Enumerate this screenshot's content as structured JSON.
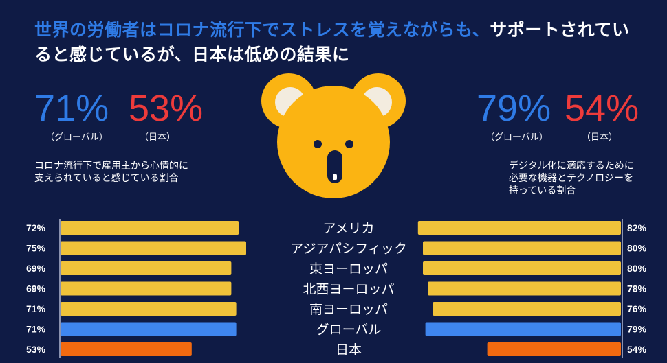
{
  "title": {
    "part1": "世界の労働者はコロナ流行下でストレスを覚えながらも、",
    "part2": "サポートされていると感じているが、日本は低めの結果に"
  },
  "left": {
    "global_pct": "71%",
    "global_label": "（グローバル）",
    "japan_pct": "53%",
    "japan_label": "（日本）",
    "description": "コロナ流行下で雇用主から心情的に支えられていると感じている割合"
  },
  "right": {
    "global_pct": "79%",
    "global_label": "（グローバル）",
    "japan_pct": "54%",
    "japan_label": "（日本）",
    "description": "デジタル化に適応するために必要な機器とテクノロジーを持っている割合"
  },
  "colors": {
    "background": "#0f1b45",
    "bar_region": "#f0c23a",
    "bar_global": "#3f86ef",
    "bar_japan": "#f26a10",
    "koala": "#fbb412",
    "koala_ear_inner": "#f3ecdf",
    "accent_blue": "#2f7be6",
    "accent_red": "#ee3b3b"
  },
  "icons": {
    "mascot": "koala-face-icon"
  },
  "chart_data": {
    "type": "bar",
    "categories": [
      "アメリカ",
      "アジアパシフィック",
      "東ヨーロッパ",
      "北西ヨーロッパ",
      "南ヨーロッパ",
      "グローバル",
      "日本"
    ],
    "series": [
      {
        "values": [
          72,
          75,
          69,
          69,
          71,
          71,
          53
        ],
        "labels": [
          "72%",
          "75%",
          "69%",
          "69%",
          "71%",
          "71%",
          "53%"
        ]
      },
      {
        "values": [
          82,
          80,
          80,
          78,
          76,
          79,
          54
        ],
        "labels": [
          "82%",
          "80%",
          "80%",
          "78%",
          "76%",
          "79%",
          "54%"
        ]
      }
    ]
  }
}
